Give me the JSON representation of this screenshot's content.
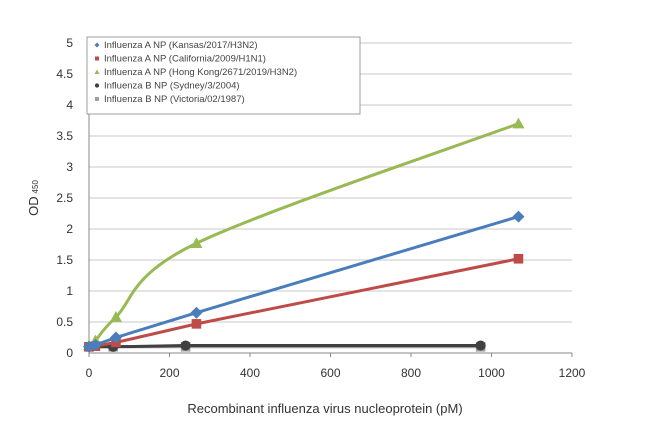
{
  "chart_data": {
    "type": "line",
    "title": "",
    "xlabel": "Recombinant influenza virus nucleoprotein (pM)",
    "ylabel": "OD",
    "ylabel_sub": "450",
    "xlim": [
      0,
      1200
    ],
    "ylim": [
      0,
      5
    ],
    "xticks": [
      "0",
      "200",
      "400",
      "600",
      "800",
      "1000",
      "1200"
    ],
    "yticks": [
      "0",
      "0.5",
      "1",
      "1.5",
      "2",
      "2.5",
      "3",
      "3.5",
      "4",
      "4.5",
      "5"
    ],
    "grid": true,
    "legend": "top-left",
    "series": [
      {
        "name": "Influenza A NP (Kansas/2017/H3N2)",
        "color": "#4a7ebb",
        "marker": "diamond",
        "smooth": false,
        "x": [
          0,
          16,
          67,
          267,
          1067
        ],
        "y": [
          0.1,
          0.13,
          0.25,
          0.65,
          2.2
        ]
      },
      {
        "name": "Influenza A NP (California/2009/H1N1)",
        "color": "#be4b48",
        "marker": "square",
        "smooth": false,
        "x": [
          0,
          16,
          67,
          267,
          1067
        ],
        "y": [
          0.1,
          0.11,
          0.17,
          0.47,
          1.52
        ]
      },
      {
        "name": "Influenza A NP (Hong Kong/2671/2019/H3N2)",
        "color": "#98b954",
        "marker": "triangle",
        "smooth": true,
        "x": [
          0,
          16,
          67,
          267,
          1067
        ],
        "y": [
          0.12,
          0.2,
          0.58,
          1.77,
          3.7
        ]
      },
      {
        "name": "Influenza B NP (Sydney/3/2004)",
        "color": "#404040",
        "marker": "circle",
        "smooth": false,
        "x": [
          0,
          60,
          240,
          973
        ],
        "y": [
          0.1,
          0.1,
          0.12,
          0.12
        ]
      },
      {
        "name": "Influenza B NP (Victoria/02/1987)",
        "color": "#a0a0a0",
        "marker": "square",
        "smooth": false,
        "x": [
          0,
          60,
          240,
          973
        ],
        "y": [
          0.1,
          0.1,
          0.1,
          0.1
        ]
      }
    ]
  }
}
